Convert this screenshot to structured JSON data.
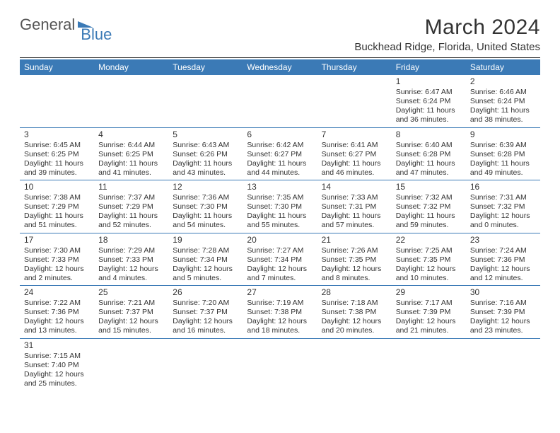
{
  "logo": {
    "general": "General",
    "blue": "Blue"
  },
  "title": "March 2024",
  "location": "Buckhead Ridge, Florida, United States",
  "colors": {
    "header_bg": "#3b7ab6",
    "header_text": "#ffffff",
    "rule": "#3b7ab6",
    "text": "#333333",
    "background": "#ffffff"
  },
  "weekdays": [
    "Sunday",
    "Monday",
    "Tuesday",
    "Wednesday",
    "Thursday",
    "Friday",
    "Saturday"
  ],
  "weeks": [
    [
      null,
      null,
      null,
      null,
      null,
      {
        "day": "1",
        "sunrise": "Sunrise: 6:47 AM",
        "sunset": "Sunset: 6:24 PM",
        "daylight": "Daylight: 11 hours and 36 minutes."
      },
      {
        "day": "2",
        "sunrise": "Sunrise: 6:46 AM",
        "sunset": "Sunset: 6:24 PM",
        "daylight": "Daylight: 11 hours and 38 minutes."
      }
    ],
    [
      {
        "day": "3",
        "sunrise": "Sunrise: 6:45 AM",
        "sunset": "Sunset: 6:25 PM",
        "daylight": "Daylight: 11 hours and 39 minutes."
      },
      {
        "day": "4",
        "sunrise": "Sunrise: 6:44 AM",
        "sunset": "Sunset: 6:25 PM",
        "daylight": "Daylight: 11 hours and 41 minutes."
      },
      {
        "day": "5",
        "sunrise": "Sunrise: 6:43 AM",
        "sunset": "Sunset: 6:26 PM",
        "daylight": "Daylight: 11 hours and 43 minutes."
      },
      {
        "day": "6",
        "sunrise": "Sunrise: 6:42 AM",
        "sunset": "Sunset: 6:27 PM",
        "daylight": "Daylight: 11 hours and 44 minutes."
      },
      {
        "day": "7",
        "sunrise": "Sunrise: 6:41 AM",
        "sunset": "Sunset: 6:27 PM",
        "daylight": "Daylight: 11 hours and 46 minutes."
      },
      {
        "day": "8",
        "sunrise": "Sunrise: 6:40 AM",
        "sunset": "Sunset: 6:28 PM",
        "daylight": "Daylight: 11 hours and 47 minutes."
      },
      {
        "day": "9",
        "sunrise": "Sunrise: 6:39 AM",
        "sunset": "Sunset: 6:28 PM",
        "daylight": "Daylight: 11 hours and 49 minutes."
      }
    ],
    [
      {
        "day": "10",
        "sunrise": "Sunrise: 7:38 AM",
        "sunset": "Sunset: 7:29 PM",
        "daylight": "Daylight: 11 hours and 51 minutes."
      },
      {
        "day": "11",
        "sunrise": "Sunrise: 7:37 AM",
        "sunset": "Sunset: 7:29 PM",
        "daylight": "Daylight: 11 hours and 52 minutes."
      },
      {
        "day": "12",
        "sunrise": "Sunrise: 7:36 AM",
        "sunset": "Sunset: 7:30 PM",
        "daylight": "Daylight: 11 hours and 54 minutes."
      },
      {
        "day": "13",
        "sunrise": "Sunrise: 7:35 AM",
        "sunset": "Sunset: 7:30 PM",
        "daylight": "Daylight: 11 hours and 55 minutes."
      },
      {
        "day": "14",
        "sunrise": "Sunrise: 7:33 AM",
        "sunset": "Sunset: 7:31 PM",
        "daylight": "Daylight: 11 hours and 57 minutes."
      },
      {
        "day": "15",
        "sunrise": "Sunrise: 7:32 AM",
        "sunset": "Sunset: 7:32 PM",
        "daylight": "Daylight: 11 hours and 59 minutes."
      },
      {
        "day": "16",
        "sunrise": "Sunrise: 7:31 AM",
        "sunset": "Sunset: 7:32 PM",
        "daylight": "Daylight: 12 hours and 0 minutes."
      }
    ],
    [
      {
        "day": "17",
        "sunrise": "Sunrise: 7:30 AM",
        "sunset": "Sunset: 7:33 PM",
        "daylight": "Daylight: 12 hours and 2 minutes."
      },
      {
        "day": "18",
        "sunrise": "Sunrise: 7:29 AM",
        "sunset": "Sunset: 7:33 PM",
        "daylight": "Daylight: 12 hours and 4 minutes."
      },
      {
        "day": "19",
        "sunrise": "Sunrise: 7:28 AM",
        "sunset": "Sunset: 7:34 PM",
        "daylight": "Daylight: 12 hours and 5 minutes."
      },
      {
        "day": "20",
        "sunrise": "Sunrise: 7:27 AM",
        "sunset": "Sunset: 7:34 PM",
        "daylight": "Daylight: 12 hours and 7 minutes."
      },
      {
        "day": "21",
        "sunrise": "Sunrise: 7:26 AM",
        "sunset": "Sunset: 7:35 PM",
        "daylight": "Daylight: 12 hours and 8 minutes."
      },
      {
        "day": "22",
        "sunrise": "Sunrise: 7:25 AM",
        "sunset": "Sunset: 7:35 PM",
        "daylight": "Daylight: 12 hours and 10 minutes."
      },
      {
        "day": "23",
        "sunrise": "Sunrise: 7:24 AM",
        "sunset": "Sunset: 7:36 PM",
        "daylight": "Daylight: 12 hours and 12 minutes."
      }
    ],
    [
      {
        "day": "24",
        "sunrise": "Sunrise: 7:22 AM",
        "sunset": "Sunset: 7:36 PM",
        "daylight": "Daylight: 12 hours and 13 minutes."
      },
      {
        "day": "25",
        "sunrise": "Sunrise: 7:21 AM",
        "sunset": "Sunset: 7:37 PM",
        "daylight": "Daylight: 12 hours and 15 minutes."
      },
      {
        "day": "26",
        "sunrise": "Sunrise: 7:20 AM",
        "sunset": "Sunset: 7:37 PM",
        "daylight": "Daylight: 12 hours and 16 minutes."
      },
      {
        "day": "27",
        "sunrise": "Sunrise: 7:19 AM",
        "sunset": "Sunset: 7:38 PM",
        "daylight": "Daylight: 12 hours and 18 minutes."
      },
      {
        "day": "28",
        "sunrise": "Sunrise: 7:18 AM",
        "sunset": "Sunset: 7:38 PM",
        "daylight": "Daylight: 12 hours and 20 minutes."
      },
      {
        "day": "29",
        "sunrise": "Sunrise: 7:17 AM",
        "sunset": "Sunset: 7:39 PM",
        "daylight": "Daylight: 12 hours and 21 minutes."
      },
      {
        "day": "30",
        "sunrise": "Sunrise: 7:16 AM",
        "sunset": "Sunset: 7:39 PM",
        "daylight": "Daylight: 12 hours and 23 minutes."
      }
    ],
    [
      {
        "day": "31",
        "sunrise": "Sunrise: 7:15 AM",
        "sunset": "Sunset: 7:40 PM",
        "daylight": "Daylight: 12 hours and 25 minutes."
      },
      null,
      null,
      null,
      null,
      null,
      null
    ]
  ]
}
